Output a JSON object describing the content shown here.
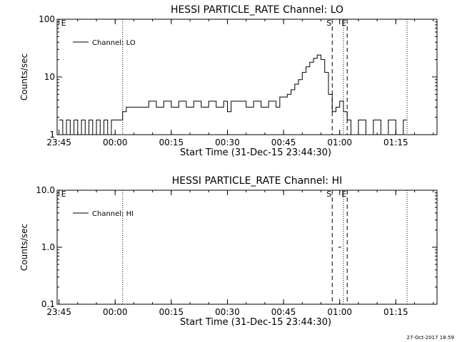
{
  "footer_timestamp": "27-Oct-2017 18:59",
  "chart_data": [
    {
      "type": "line",
      "title": "HESSI PARTICLE_RATE Channel: LO",
      "xlabel": "Start Time (31-Dec-15 23:44:30)",
      "ylabel": "Counts/sec",
      "x_unit": "minutes after 23:44:30",
      "x_ticks": [
        "23:45",
        "00:00",
        "00:15",
        "00:30",
        "00:45",
        "01:00",
        "01:15"
      ],
      "y_scale": "log",
      "ylim": [
        1,
        100
      ],
      "y_ticks": [
        "1",
        "10",
        "100"
      ],
      "legend": {
        "position": "top-left",
        "entries": [
          "Channel: LO"
        ]
      },
      "markers": [
        {
          "label": "",
          "time": "00:02",
          "style": "dotted"
        },
        {
          "label": "S",
          "time": "00:58",
          "style": "dashed"
        },
        {
          "label": "E",
          "time": "01:02",
          "style": "dashed"
        },
        {
          "label": "",
          "time": "01:01",
          "style": "dotted"
        },
        {
          "label": "E",
          "time": "23:45",
          "style": "none"
        },
        {
          "label": "",
          "time": "01:18",
          "style": "dotted"
        }
      ],
      "series": [
        {
          "name": "Channel: LO",
          "color": "#000000",
          "x": [
            "23:45",
            "23:46",
            "23:47",
            "23:48",
            "23:49",
            "23:50",
            "23:51",
            "23:52",
            "23:53",
            "23:54",
            "23:55",
            "23:56",
            "23:57",
            "23:58",
            "23:59",
            "00:00",
            "00:01",
            "00:02",
            "00:03",
            "00:05",
            "00:07",
            "00:09",
            "00:11",
            "00:13",
            "00:15",
            "00:17",
            "00:19",
            "00:21",
            "00:23",
            "00:25",
            "00:27",
            "00:29",
            "00:30",
            "00:31",
            "00:33",
            "00:35",
            "00:37",
            "00:39",
            "00:41",
            "00:43",
            "00:44",
            "00:45",
            "00:46",
            "00:47",
            "00:48",
            "00:49",
            "00:50",
            "00:51",
            "00:52",
            "00:53",
            "00:54",
            "00:55",
            "00:56",
            "00:57",
            "00:58",
            "00:59",
            "01:00",
            "01:01",
            "01:02",
            "01:03",
            "01:05",
            "01:07",
            "01:09",
            "01:11",
            "01:13",
            "01:15",
            "01:17",
            "01:18"
          ],
          "y": [
            1.8,
            1.0,
            1.8,
            1.0,
            1.8,
            1.0,
            1.8,
            1.0,
            1.8,
            1.0,
            1.8,
            1.0,
            1.8,
            1.0,
            1.8,
            1.8,
            1.8,
            2.5,
            3.0,
            3.0,
            3.0,
            3.8,
            3.0,
            3.8,
            3.0,
            3.8,
            3.0,
            3.8,
            3.0,
            3.8,
            3.0,
            3.8,
            2.5,
            3.8,
            3.8,
            3.0,
            3.8,
            3.0,
            3.8,
            3.0,
            4.5,
            4.5,
            5.0,
            6.0,
            7.5,
            9.0,
            12.0,
            15.0,
            18.0,
            21.0,
            24.0,
            20.0,
            12.0,
            5.0,
            2.5,
            3.0,
            3.8,
            2.5,
            1.8,
            1.0,
            1.8,
            1.0,
            1.8,
            1.0,
            1.8,
            1.0,
            1.8,
            1.8
          ]
        }
      ]
    },
    {
      "type": "line",
      "title": "HESSI PARTICLE_RATE Channel: HI",
      "xlabel": "Start Time (31-Dec-15 23:44:30)",
      "ylabel": "Counts/sec",
      "x_ticks": [
        "23:45",
        "00:00",
        "00:15",
        "00:30",
        "00:45",
        "01:00",
        "01:15"
      ],
      "y_scale": "log",
      "ylim": [
        0.1,
        10
      ],
      "y_ticks": [
        "0.1",
        "1.0",
        "10.0"
      ],
      "legend": {
        "position": "top-left",
        "entries": [
          "Channel: HI"
        ]
      },
      "markers": [
        {
          "label": "",
          "time": "00:02",
          "style": "dotted"
        },
        {
          "label": "S",
          "time": "00:58",
          "style": "dashed"
        },
        {
          "label": "E",
          "time": "01:02",
          "style": "dashed"
        },
        {
          "label": "",
          "time": "01:01",
          "style": "dotted"
        },
        {
          "label": "E",
          "time": "23:45",
          "style": "none"
        },
        {
          "label": "",
          "time": "01:18",
          "style": "dotted"
        }
      ],
      "series": [
        {
          "name": "Channel: HI",
          "color": "#000000",
          "x": [
            "01:00"
          ],
          "y": [
            1.0
          ]
        }
      ]
    }
  ]
}
